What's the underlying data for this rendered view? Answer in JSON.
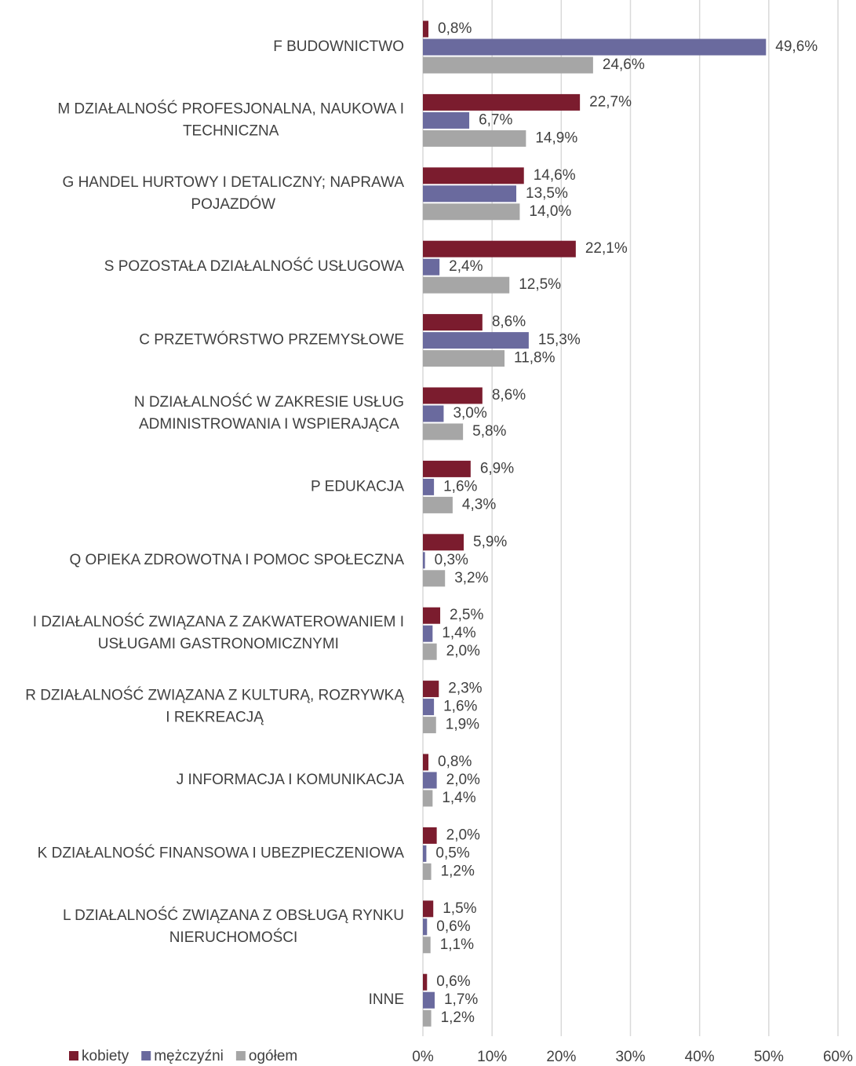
{
  "chart_data": {
    "type": "hbar",
    "categories": [
      "F BUDOWNICTWO",
      "M DZIAŁALNOŚĆ PROFESJONALNA, NAUKOWA I TECHNICZNA",
      "G HANDEL HURTOWY I DETALICZNY; NAPRAWA POJAZDÓW",
      "S POZOSTAŁA DZIAŁALNOŚĆ USŁUGOWA",
      "C PRZETWÓRSTWO PRZEMYSŁOWE",
      "N DZIAŁALNOŚĆ W ZAKRESIE USŁUG ADMINISTROWANIA I WSPIERAJĄCA",
      "P EDUKACJA",
      "Q OPIEKA ZDROWOTNA I POMOC SPOŁECZNA",
      "I DZIAŁALNOŚĆ ZWIĄZANA Z ZAKWATEROWANIEM I USŁUGAMI GASTRONOMICZNYMI",
      "R DZIAŁALNOŚĆ ZWIĄZANA Z KULTURĄ, ROZRYWKĄ I REKREACJĄ",
      "J INFORMACJA I KOMUNIKACJA",
      "K DZIAŁALNOŚĆ FINANSOWA I UBEZPIECZENIOWA",
      "L DZIAŁALNOŚĆ ZWIĄZANA Z OBSŁUGĄ RYNKU NIERUCHOMOŚCI",
      "INNE"
    ],
    "series": [
      {
        "name": "kobiety",
        "color": "#7b1c2e",
        "values": [
          0.8,
          22.7,
          14.6,
          22.1,
          8.6,
          8.6,
          6.9,
          5.9,
          2.5,
          2.3,
          0.8,
          2.0,
          1.5,
          0.6
        ],
        "value_labels": [
          "0,8%",
          "22,7%",
          "14,6%",
          "22,1%",
          "8,6%",
          "8,6%",
          "6,9%",
          "5,9%",
          "2,5%",
          "2,3%",
          "0,8%",
          "2,0%",
          "1,5%",
          "0,6%"
        ]
      },
      {
        "name": "mężczyźni",
        "color": "#6a6a9e",
        "values": [
          49.6,
          6.7,
          13.5,
          2.4,
          15.3,
          3.0,
          1.6,
          0.3,
          1.4,
          1.6,
          2.0,
          0.5,
          0.6,
          1.7
        ],
        "value_labels": [
          "49,6%",
          "6,7%",
          "13,5%",
          "2,4%",
          "15,3%",
          "3,0%",
          "1,6%",
          "0,3%",
          "1,4%",
          "1,6%",
          "2,0%",
          "0,5%",
          "0,6%",
          "1,7%"
        ]
      },
      {
        "name": "ogółem",
        "color": "#a6a6a6",
        "values": [
          24.6,
          14.9,
          14.0,
          12.5,
          11.8,
          5.8,
          4.3,
          3.2,
          2.0,
          1.9,
          1.4,
          1.2,
          1.1,
          1.2
        ],
        "value_labels": [
          "24,6%",
          "14,9%",
          "14,0%",
          "12,5%",
          "11,8%",
          "5,8%",
          "4,3%",
          "3,2%",
          "2,0%",
          "1,9%",
          "1,4%",
          "1,2%",
          "1,1%",
          "1,2%"
        ]
      }
    ],
    "xlim": [
      0,
      60
    ],
    "xticks": [
      {
        "value": 0,
        "label": "0%"
      },
      {
        "value": 10,
        "label": "10%"
      },
      {
        "value": 20,
        "label": "20%"
      },
      {
        "value": 30,
        "label": "30%"
      },
      {
        "value": 40,
        "label": "40%"
      },
      {
        "value": 50,
        "label": "50%"
      },
      {
        "value": 60,
        "label": "60%"
      }
    ],
    "grid": true,
    "legend": "bottom-left"
  }
}
